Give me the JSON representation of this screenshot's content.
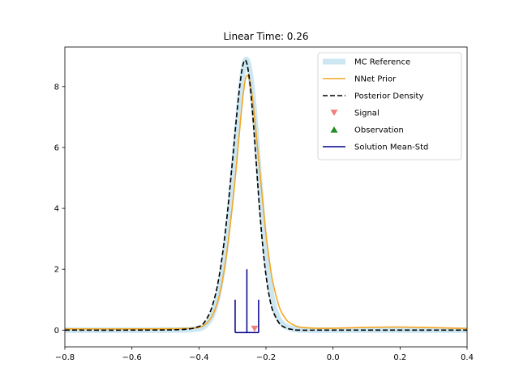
{
  "chart_data": {
    "type": "line",
    "title": "Linear Time: 0.26",
    "xlabel": "",
    "ylabel": "",
    "xlim": [
      -0.8,
      0.4
    ],
    "ylim": [
      -0.55,
      9.3
    ],
    "xticks": [
      -0.8,
      -0.6,
      -0.4,
      -0.2,
      0.0,
      0.2,
      0.4
    ],
    "xtick_labels": [
      "−0.8",
      "−0.6",
      "−0.4",
      "−0.2",
      "0.0",
      "0.2",
      "0.4"
    ],
    "yticks": [
      0,
      2,
      4,
      6,
      8
    ],
    "ytick_labels": [
      "0",
      "2",
      "4",
      "6",
      "8"
    ],
    "grid": false,
    "legend_position": "top-right",
    "series": [
      {
        "name": "MC Reference",
        "style": "thick-light-line",
        "color": "#cce7f2",
        "x": [
          -0.8,
          -0.6,
          -0.45,
          -0.4,
          -0.38,
          -0.36,
          -0.34,
          -0.32,
          -0.3,
          -0.29,
          -0.28,
          -0.27,
          -0.26,
          -0.25,
          -0.24,
          -0.23,
          -0.22,
          -0.21,
          -0.2,
          -0.18,
          -0.16,
          -0.14,
          -0.12,
          -0.1,
          0.0,
          0.4
        ],
        "values": [
          0.0,
          0.0,
          0.01,
          0.05,
          0.17,
          0.5,
          1.3,
          2.75,
          4.95,
          6.15,
          7.38,
          8.38,
          8.88,
          8.6,
          7.75,
          6.5,
          5.0,
          3.6,
          2.45,
          0.95,
          0.34,
          0.12,
          0.04,
          0.01,
          0.0,
          0.0
        ]
      },
      {
        "name": "NNet Prior",
        "style": "solid",
        "color": "#f5a623",
        "x": [
          -0.8,
          -0.6,
          -0.45,
          -0.4,
          -0.38,
          -0.36,
          -0.34,
          -0.32,
          -0.3,
          -0.29,
          -0.28,
          -0.27,
          -0.26,
          -0.25,
          -0.24,
          -0.23,
          -0.22,
          -0.21,
          -0.2,
          -0.19,
          -0.18,
          -0.16,
          -0.14,
          -0.12,
          -0.1,
          -0.05,
          0.0,
          0.1,
          0.2,
          0.3,
          0.4
        ],
        "values": [
          0.04,
          0.04,
          0.05,
          0.09,
          0.2,
          0.48,
          1.1,
          2.3,
          4.1,
          5.2,
          6.4,
          7.55,
          8.3,
          8.25,
          7.6,
          6.55,
          5.4,
          4.25,
          3.15,
          2.3,
          1.6,
          0.75,
          0.35,
          0.18,
          0.1,
          0.06,
          0.06,
          0.09,
          0.1,
          0.08,
          0.05
        ]
      },
      {
        "name": "Posterior Density",
        "style": "dashed",
        "color": "#000000",
        "x": [
          -0.8,
          -0.6,
          -0.45,
          -0.4,
          -0.38,
          -0.36,
          -0.34,
          -0.32,
          -0.3,
          -0.29,
          -0.28,
          -0.27,
          -0.26,
          -0.25,
          -0.24,
          -0.23,
          -0.22,
          -0.21,
          -0.2,
          -0.19,
          -0.18,
          -0.16,
          -0.14,
          -0.12,
          -0.1,
          0.0,
          0.4
        ],
        "values": [
          0.0,
          0.0,
          0.02,
          0.12,
          0.32,
          0.8,
          1.75,
          3.35,
          5.55,
          6.75,
          7.85,
          8.65,
          8.85,
          8.3,
          7.15,
          5.65,
          4.1,
          2.8,
          1.8,
          1.1,
          0.65,
          0.22,
          0.07,
          0.02,
          0.0,
          0.0,
          0.0
        ]
      }
    ],
    "markers": [
      {
        "name": "Signal",
        "shape": "triangle-down",
        "color": "#f08080",
        "x": -0.234,
        "y": 0.05
      },
      {
        "name": "Observation",
        "shape": "triangle-up",
        "color": "#228b22",
        "x": null,
        "y": null
      }
    ],
    "mean_std": {
      "name": "Solution Mean-Std",
      "color": "#00008b",
      "mean": -0.257,
      "std": 0.035,
      "baseline": -0.08,
      "mean_height": 2.0,
      "std_height": 1.0
    }
  }
}
